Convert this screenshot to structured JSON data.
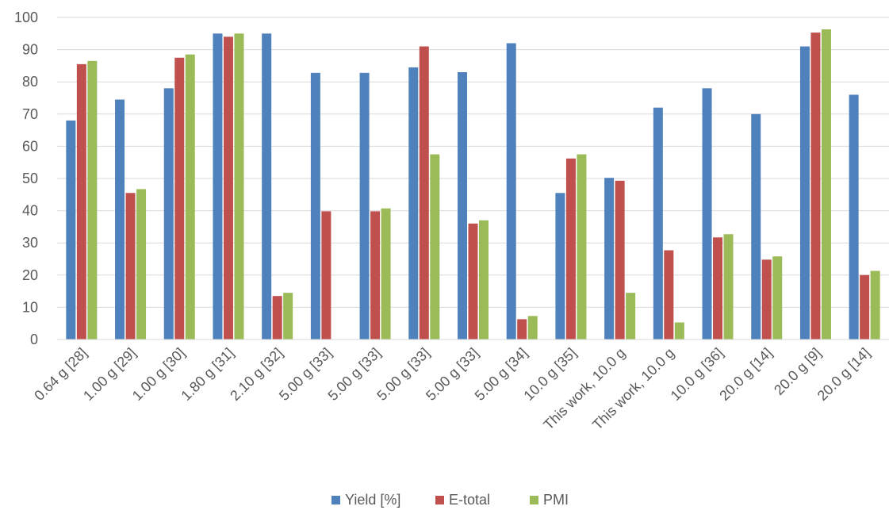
{
  "chart_data": {
    "type": "bar",
    "categories": [
      "0.64 g [28]",
      "1.00 g [29]",
      "1.00 g [30]",
      "1.80 g [31]",
      "2.10 g [32]",
      "5.00 g [33]",
      "5.00 g [33]",
      "5.00 g [33]",
      "5.00 g [33]",
      "5.00 g [34]",
      "10.0 g [35]",
      "This work, 10.0 g",
      "This work, 10.0 g",
      "10.0 g [36]",
      "20.0 g [14]",
      "20.0 g [9]",
      "20.0 g [14]"
    ],
    "series": [
      {
        "name": "Yield  [%]",
        "color": "#4f81bd",
        "values": [
          68,
          74.5,
          78,
          95,
          95,
          82.8,
          82.8,
          84.5,
          83,
          92,
          45.5,
          50.2,
          72,
          78,
          70,
          91,
          76
        ]
      },
      {
        "name": "E-total",
        "color": "#c0504d",
        "values": [
          85.5,
          45.5,
          87.5,
          94,
          13.5,
          39.8,
          39.8,
          91,
          36,
          6.3,
          56.2,
          49.3,
          27.7,
          31.7,
          24.8,
          95.3,
          20
        ]
      },
      {
        "name": "PMI",
        "color": "#9bbb59",
        "values": [
          86.5,
          46.7,
          88.5,
          95,
          14.5,
          0,
          40.7,
          57.5,
          37,
          7.3,
          57.5,
          14.5,
          5.3,
          32.7,
          25.8,
          96.3,
          21.3
        ]
      }
    ],
    "title": "",
    "xlabel": "",
    "ylabel": "",
    "ylim": [
      0,
      100
    ],
    "yticks": [
      "0",
      "10",
      "20",
      "30",
      "40",
      "50",
      "60",
      "70",
      "80",
      "90",
      "100"
    ],
    "grid": true,
    "legend": "bottom"
  }
}
